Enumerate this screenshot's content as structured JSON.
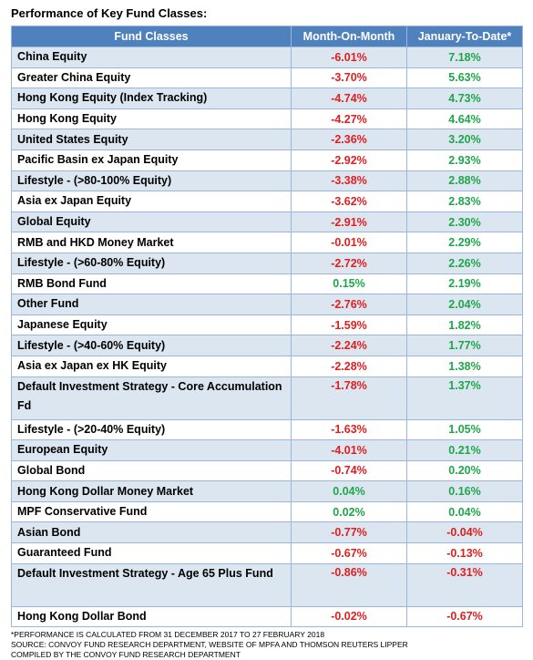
{
  "title": "Performance of Key Fund Classes:",
  "colors": {
    "header_bg": "#4f81bd",
    "band_bg": "#dce6f1",
    "negative": "#e01e1e",
    "positive": "#1ea64a"
  },
  "chart_data": {
    "type": "table",
    "columns": [
      "Fund Classes",
      "Month-On-Month",
      "January-To-Date*"
    ],
    "rows": [
      [
        "China Equity",
        "-6.01%",
        "7.18%"
      ],
      [
        "Greater China Equity",
        "-3.70%",
        "5.63%"
      ],
      [
        "Hong Kong Equity (Index Tracking)",
        "-4.74%",
        "4.73%"
      ],
      [
        "Hong Kong Equity",
        "-4.27%",
        "4.64%"
      ],
      [
        "United States Equity",
        "-2.36%",
        "3.20%"
      ],
      [
        "Pacific Basin ex Japan Equity",
        "-2.92%",
        "2.93%"
      ],
      [
        "Lifestyle - (>80-100% Equity)",
        "-3.38%",
        "2.88%"
      ],
      [
        "Asia ex Japan Equity",
        "-3.62%",
        "2.83%"
      ],
      [
        "Global Equity",
        "-2.91%",
        "2.30%"
      ],
      [
        "RMB and HKD Money Market",
        "-0.01%",
        "2.29%"
      ],
      [
        "Lifestyle - (>60-80% Equity)",
        "-2.72%",
        "2.26%"
      ],
      [
        "RMB Bond Fund",
        "0.15%",
        "2.19%"
      ],
      [
        "Other Fund",
        "-2.76%",
        "2.04%"
      ],
      [
        "Japanese Equity",
        "-1.59%",
        "1.82%"
      ],
      [
        "Lifestyle - (>40-60% Equity)",
        "-2.24%",
        "1.77%"
      ],
      [
        "Asia ex Japan ex HK Equity",
        "-2.28%",
        "1.38%"
      ],
      [
        "Default Investment Strategy - Core Accumulation Fd",
        "-1.78%",
        "1.37%"
      ],
      [
        "Lifestyle - (>20-40% Equity)",
        "-1.63%",
        "1.05%"
      ],
      [
        "European Equity",
        "-4.01%",
        "0.21%"
      ],
      [
        "Global Bond",
        "-0.74%",
        "0.20%"
      ],
      [
        "Hong Kong Dollar Money Market",
        "0.04%",
        "0.16%"
      ],
      [
        "MPF Conservative Fund",
        "0.02%",
        "0.04%"
      ],
      [
        "Asian Bond",
        "-0.77%",
        "-0.04%"
      ],
      [
        "Guaranteed Fund",
        "-0.67%",
        "-0.13%"
      ],
      [
        "Default Investment Strategy - Age 65 Plus Fund",
        "-0.86%",
        "-0.31%"
      ],
      [
        "Hong Kong Dollar Bond",
        "-0.02%",
        "-0.67%"
      ]
    ]
  },
  "notes": [
    "*PERFORMANCE IS CALCULATED FROM 31 DECEMBER 2017 TO 27 FEBRUARY 2018",
    "SOURCE: CONVOY FUND RESEARCH DEPARTMENT, WEBSITE OF MPFA AND THOMSON REUTERS LIPPER",
    "COMPILED BY THE CONVOY FUND RESEARCH DEPARTMENT"
  ]
}
